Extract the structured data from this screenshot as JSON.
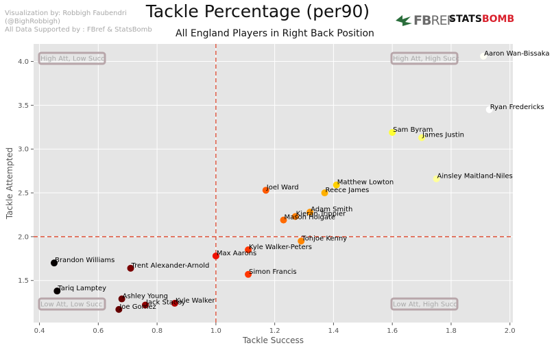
{
  "credits": {
    "line1": "Visualization by: Robbigh Faubendri",
    "line2": "(@BighRobbigh)",
    "line3": "All Data Supported by : FBref & StatsBomb"
  },
  "logos": {
    "fbref_a": "FB",
    "fbref_b": "REF",
    "statsbomb_a": "STATS",
    "statsbomb_b": "BOMB",
    "fbref_color": "#2b6e3c",
    "statsbomb_accent": "#d9202c"
  },
  "chart_data": {
    "type": "scatter",
    "title": "Tackle Percentage (per90)",
    "subtitle": "All England Players in Right Back Position",
    "xlabel": "Tackle Success",
    "ylabel": "Tackle Attempted",
    "xlim": [
      0.38,
      2.01
    ],
    "ylim": [
      1.02,
      4.2
    ],
    "xticks": [
      0.4,
      0.6,
      0.8,
      1.0,
      1.2,
      1.4,
      1.6,
      1.8,
      2.0
    ],
    "yticks": [
      1.5,
      2.0,
      2.5,
      3.0,
      3.5,
      4.0
    ],
    "grid": true,
    "reference_lines": {
      "x": 1.0,
      "y": 2.0,
      "color": "#e0533b"
    },
    "quadrant_labels": {
      "top_left": "High Att, Low Succ",
      "top_right": "High Att, High Succ",
      "bottom_left": "Low Att, Low Succ",
      "bottom_right": "Low Att, High Succ"
    },
    "colormap": "hot (black → red → orange → yellow → white by tackle success)",
    "points": [
      {
        "name": "Aaron Wan-Bissaka",
        "x": 1.91,
        "y": 4.06,
        "color": "#fffff5"
      },
      {
        "name": "Ryan Fredericks",
        "x": 1.93,
        "y": 3.45,
        "color": "#ffffff"
      },
      {
        "name": "Sam Byram",
        "x": 1.6,
        "y": 3.19,
        "color": "#ffff33"
      },
      {
        "name": "James Justin",
        "x": 1.7,
        "y": 3.13,
        "color": "#ffff70"
      },
      {
        "name": "Ainsley Maitland-Niles",
        "x": 1.75,
        "y": 2.66,
        "color": "#ffff99"
      },
      {
        "name": "Matthew Lowton",
        "x": 1.41,
        "y": 2.59,
        "color": "#ffd000"
      },
      {
        "name": "Joel Ward",
        "x": 1.17,
        "y": 2.53,
        "color": "#ff5a00"
      },
      {
        "name": "Reece James",
        "x": 1.37,
        "y": 2.5,
        "color": "#ffb000"
      },
      {
        "name": "Adam Smith",
        "x": 1.32,
        "y": 2.28,
        "color": "#ff9400"
      },
      {
        "name": "Kieran Trippier",
        "x": 1.27,
        "y": 2.23,
        "color": "#ff7c00"
      },
      {
        "name": "Mason Holgate",
        "x": 1.23,
        "y": 2.19,
        "color": "#ff6a00"
      },
      {
        "name": "Tohjoe Kenny",
        "x": 1.29,
        "y": 1.95,
        "color": "#ff8600"
      },
      {
        "name": "Kyle Walker-Peters",
        "x": 1.11,
        "y": 1.85,
        "color": "#ff3600"
      },
      {
        "name": "Max Aarons",
        "x": 1.0,
        "y": 1.78,
        "color": "#f01000"
      },
      {
        "name": "Brandon Williams",
        "x": 0.45,
        "y": 1.7,
        "color": "#050000"
      },
      {
        "name": "Trent Alexander-Arnold",
        "x": 0.71,
        "y": 1.64,
        "color": "#7a0000"
      },
      {
        "name": "Simon Francis",
        "x": 1.11,
        "y": 1.57,
        "color": "#ff3600"
      },
      {
        "name": "Tariq Lamptey",
        "x": 0.46,
        "y": 1.38,
        "color": "#080000"
      },
      {
        "name": "Ashley Young",
        "x": 0.68,
        "y": 1.29,
        "color": "#6b0000"
      },
      {
        "name": "Kyle Walker",
        "x": 0.86,
        "y": 1.24,
        "color": "#b20000"
      },
      {
        "name": "Jack Stacey",
        "x": 0.76,
        "y": 1.22,
        "color": "#8f0000"
      },
      {
        "name": "Joe Gomez",
        "x": 0.67,
        "y": 1.17,
        "color": "#660000"
      }
    ]
  }
}
